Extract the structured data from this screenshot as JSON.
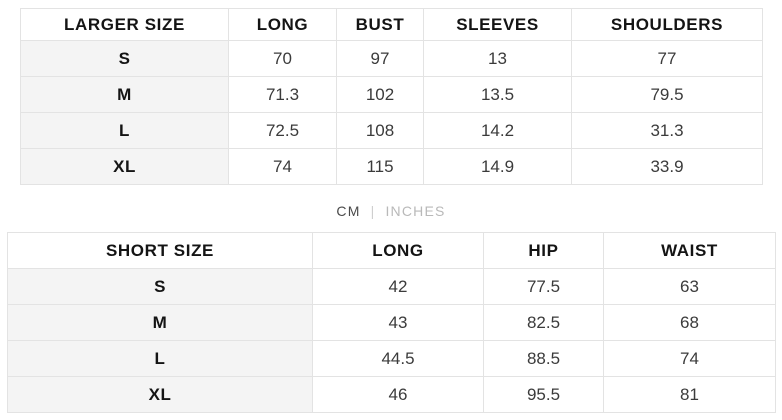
{
  "colors": {
    "background": "#ffffff",
    "border": "#e3e3e3",
    "size_column_bg": "#f4f4f4",
    "header_text": "#141414",
    "cell_text": "#3b3b3b",
    "unit_active": "#4a4a4a",
    "unit_inactive": "#b9b9b9"
  },
  "larger_table": {
    "headers": [
      "LARGER SIZE",
      "LONG",
      "BUST",
      "SLEEVES",
      "SHOULDERS"
    ],
    "rows": [
      {
        "size": "S",
        "values": [
          "70",
          "97",
          "13",
          "77"
        ]
      },
      {
        "size": "M",
        "values": [
          "71.3",
          "102",
          "13.5",
          "79.5"
        ]
      },
      {
        "size": "L",
        "values": [
          "72.5",
          "108",
          "14.2",
          "31.3"
        ]
      },
      {
        "size": "XL",
        "values": [
          "74",
          "115",
          "14.9",
          "33.9"
        ]
      }
    ]
  },
  "unit_toggle": {
    "cm_label": "CM",
    "separator": "|",
    "inches_label": "INCHES",
    "active": "CM"
  },
  "short_table": {
    "headers": [
      "SHORT SIZE",
      "LONG",
      "HIP",
      "WAIST"
    ],
    "rows": [
      {
        "size": "S",
        "values": [
          "42",
          "77.5",
          "63"
        ]
      },
      {
        "size": "M",
        "values": [
          "43",
          "82.5",
          "68"
        ]
      },
      {
        "size": "L",
        "values": [
          "44.5",
          "88.5",
          "74"
        ]
      },
      {
        "size": "XL",
        "values": [
          "46",
          "95.5",
          "81"
        ]
      }
    ]
  }
}
